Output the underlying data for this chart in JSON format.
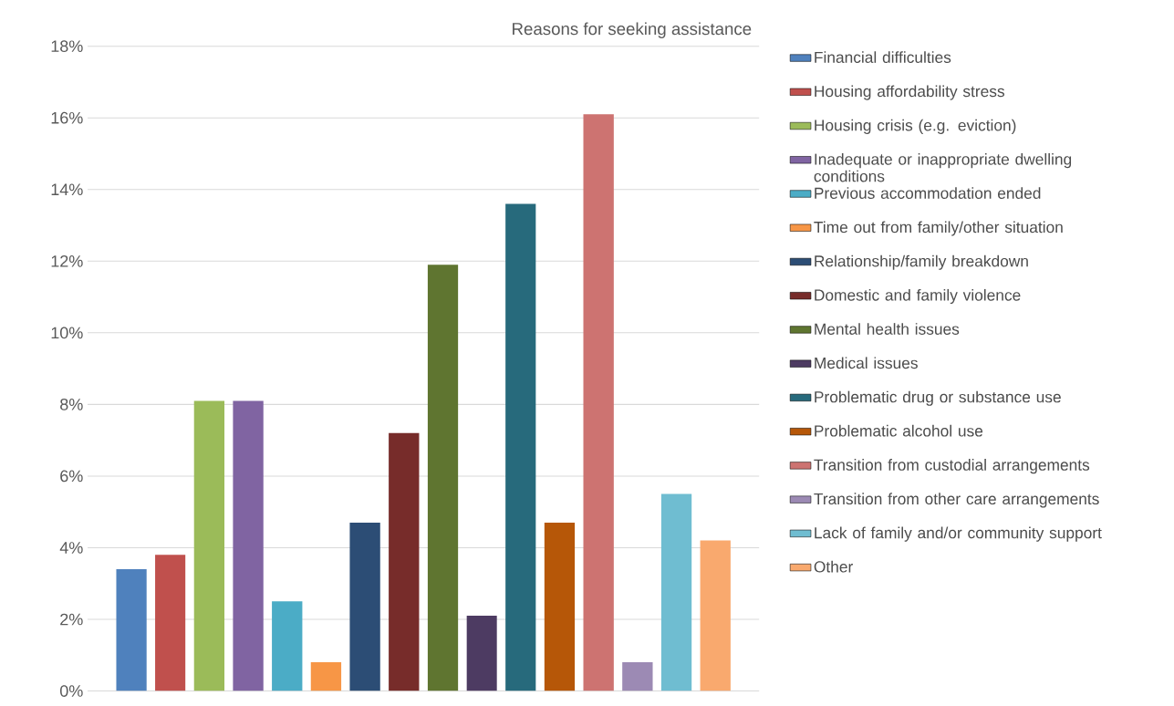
{
  "chart_data": {
    "type": "bar",
    "title": "Reasons for seeking assistance",
    "categories": [
      null
    ],
    "series": [
      {
        "name": "Financial difficulties",
        "color": "#4f81bd",
        "values": [
          3.4
        ]
      },
      {
        "name": "Housing affordability stress",
        "color": "#c0504d",
        "values": [
          3.8
        ]
      },
      {
        "name": "Housing crisis (e.g. eviction)",
        "color": "#9bbb59",
        "values": [
          8.1
        ]
      },
      {
        "name": "Inadequate or inappropriate dwelling conditions",
        "color": "#8064a2",
        "values": [
          8.1
        ]
      },
      {
        "name": "Previous accommodation ended",
        "color": "#4bacc6",
        "values": [
          2.5
        ]
      },
      {
        "name": "Time out from family/other situation",
        "color": "#f79646",
        "values": [
          0.8
        ]
      },
      {
        "name": "Relationship/family breakdown",
        "color": "#2c4d75",
        "values": [
          4.7
        ]
      },
      {
        "name": "Domestic and family violence",
        "color": "#772c2a",
        "values": [
          7.2
        ]
      },
      {
        "name": "Mental health issues",
        "color": "#5f7530",
        "values": [
          11.9
        ]
      },
      {
        "name": "Medical issues",
        "color": "#4d3b62",
        "values": [
          2.1
        ]
      },
      {
        "name": "Problematic drug or substance use",
        "color": "#276a7c",
        "values": [
          13.6
        ]
      },
      {
        "name": "Problematic alcohol use",
        "color": "#b65708",
        "values": [
          4.7
        ]
      },
      {
        "name": "Transition from custodial arrangements",
        "color": "#cd7371",
        "values": [
          16.1
        ]
      },
      {
        "name": "Transition from other care arrangements",
        "color": "#9c8ab4",
        "values": [
          0.8
        ]
      },
      {
        "name": "Lack of family and/or community support",
        "color": "#6fbdd1",
        "values": [
          5.5
        ]
      },
      {
        "name": "Other",
        "color": "#f9a96e",
        "values": [
          4.2
        ]
      }
    ],
    "ylim": [
      0,
      18
    ],
    "yticks": [
      {
        "value": 0,
        "label": "0%"
      },
      {
        "value": 2,
        "label": "2%"
      },
      {
        "value": 4,
        "label": "4%"
      },
      {
        "value": 6,
        "label": "6%"
      },
      {
        "value": 8,
        "label": "8%"
      },
      {
        "value": 10,
        "label": "10%"
      },
      {
        "value": 12,
        "label": "12%"
      },
      {
        "value": 14,
        "label": "14%"
      },
      {
        "value": 16,
        "label": "16%"
      },
      {
        "value": 18,
        "label": "18%"
      }
    ],
    "grid": "y",
    "legend": "right",
    "tick_labels": "y"
  }
}
